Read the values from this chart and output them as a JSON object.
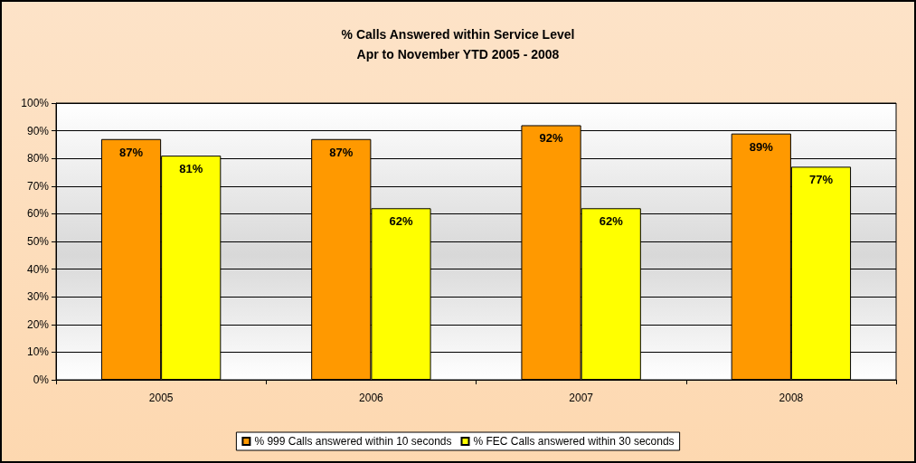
{
  "chart_data": {
    "type": "bar",
    "title": "% Calls Answered within Service Level",
    "subtitle": "Apr to November YTD 2005 - 2008",
    "categories": [
      "2005",
      "2006",
      "2007",
      "2008"
    ],
    "series": [
      {
        "name": "% 999 Calls answered within 10 seconds",
        "color": "#ff9900",
        "values": [
          87,
          87,
          92,
          89
        ],
        "value_labels": [
          "87%",
          "87%",
          "92%",
          "89%"
        ]
      },
      {
        "name": "% FEC Calls answered within 30 seconds",
        "color": "#ffff00",
        "values": [
          81,
          62,
          62,
          77
        ],
        "value_labels": [
          "81%",
          "62%",
          "62%",
          "77%"
        ]
      }
    ],
    "ylim": [
      0,
      100
    ],
    "yticks": [
      {
        "value": 0,
        "label": "0%"
      },
      {
        "value": 10,
        "label": "10%"
      },
      {
        "value": 20,
        "label": "20%"
      },
      {
        "value": 30,
        "label": "30%"
      },
      {
        "value": 40,
        "label": "40%"
      },
      {
        "value": 50,
        "label": "50%"
      },
      {
        "value": 60,
        "label": "60%"
      },
      {
        "value": 70,
        "label": "70%"
      },
      {
        "value": 80,
        "label": "80%"
      },
      {
        "value": 90,
        "label": "90%"
      },
      {
        "value": 100,
        "label": "100%"
      }
    ],
    "grid": "y",
    "legend": "bottom"
  }
}
